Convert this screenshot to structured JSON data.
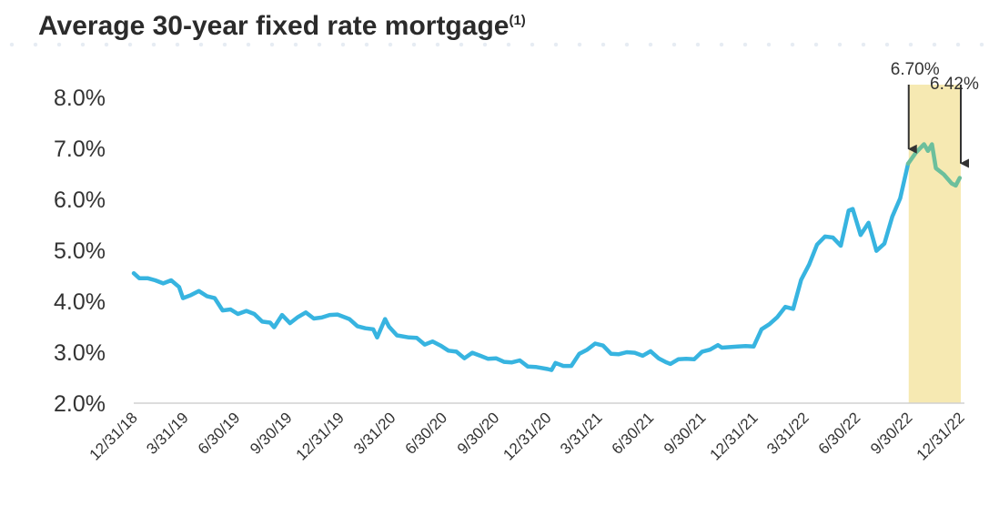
{
  "title": "Average 30-year fixed rate mortgage",
  "title_note": "(1)",
  "colors": {
    "line": "#37b4e0",
    "highlight_line": "#6cbf9c",
    "highlight_band": "#f6e9b2",
    "axis": "#d0d0d0",
    "arrow": "#333333"
  },
  "chart_data": {
    "type": "line",
    "title": "Average 30-year fixed rate mortgage",
    "xlabel": "",
    "ylabel": "",
    "ylim": [
      2.0,
      8.0
    ],
    "yticks": [
      2.0,
      3.0,
      4.0,
      5.0,
      6.0,
      7.0,
      8.0
    ],
    "ytick_labels": [
      "2.0%",
      "3.0%",
      "4.0%",
      "5.0%",
      "6.0%",
      "7.0%",
      "8.0%"
    ],
    "xlim": [
      "2018-12-31",
      "2022-12-31"
    ],
    "xticks": [
      "2018-12-31",
      "2019-03-31",
      "2019-06-30",
      "2019-09-30",
      "2019-12-31",
      "2020-03-31",
      "2020-06-30",
      "2020-09-30",
      "2020-12-31",
      "2021-03-31",
      "2021-06-30",
      "2021-09-30",
      "2021-12-31",
      "2022-03-31",
      "2022-06-30",
      "2022-09-30",
      "2022-12-31"
    ],
    "xtick_labels": [
      "12/31/18",
      "3/31/19",
      "6/30/19",
      "9/30/19",
      "12/31/19",
      "3/31/20",
      "6/30/20",
      "9/30/20",
      "12/31/20",
      "3/31/21",
      "6/30/21",
      "9/30/21",
      "12/31/21",
      "3/31/22",
      "6/30/22",
      "9/30/22",
      "12/31/22"
    ],
    "grid": false,
    "highlight": {
      "from": "2022-09-30",
      "to": "2022-12-31"
    },
    "annotations": [
      {
        "date": "2022-09-30",
        "value": 6.7,
        "label": "6.70%"
      },
      {
        "date": "2022-12-31",
        "value": 6.42,
        "label": "6.42%"
      }
    ],
    "series": [
      {
        "name": "",
        "points": [
          [
            "2018-12-31",
            4.55
          ],
          [
            "2019-01-10",
            4.45
          ],
          [
            "2019-01-25",
            4.45
          ],
          [
            "2019-02-07",
            4.41
          ],
          [
            "2019-02-21",
            4.35
          ],
          [
            "2019-03-07",
            4.41
          ],
          [
            "2019-03-21",
            4.28
          ],
          [
            "2019-03-28",
            4.06
          ],
          [
            "2019-04-11",
            4.12
          ],
          [
            "2019-04-25",
            4.2
          ],
          [
            "2019-05-09",
            4.1
          ],
          [
            "2019-05-23",
            4.06
          ],
          [
            "2019-06-06",
            3.82
          ],
          [
            "2019-06-20",
            3.84
          ],
          [
            "2019-07-03",
            3.75
          ],
          [
            "2019-07-18",
            3.81
          ],
          [
            "2019-08-01",
            3.75
          ],
          [
            "2019-08-15",
            3.6
          ],
          [
            "2019-08-29",
            3.58
          ],
          [
            "2019-09-05",
            3.49
          ],
          [
            "2019-09-19",
            3.73
          ],
          [
            "2019-10-03",
            3.57
          ],
          [
            "2019-10-17",
            3.69
          ],
          [
            "2019-10-31",
            3.78
          ],
          [
            "2019-11-14",
            3.66
          ],
          [
            "2019-11-28",
            3.68
          ],
          [
            "2019-12-12",
            3.73
          ],
          [
            "2019-12-26",
            3.74
          ],
          [
            "2020-01-16",
            3.65
          ],
          [
            "2020-01-30",
            3.51
          ],
          [
            "2020-02-13",
            3.47
          ],
          [
            "2020-02-27",
            3.45
          ],
          [
            "2020-03-05",
            3.29
          ],
          [
            "2020-03-19",
            3.65
          ],
          [
            "2020-03-26",
            3.5
          ],
          [
            "2020-04-09",
            3.33
          ],
          [
            "2020-04-30",
            3.29
          ],
          [
            "2020-05-14",
            3.28
          ],
          [
            "2020-05-28",
            3.15
          ],
          [
            "2020-06-11",
            3.21
          ],
          [
            "2020-06-25",
            3.13
          ],
          [
            "2020-07-09",
            3.03
          ],
          [
            "2020-07-23",
            3.01
          ],
          [
            "2020-08-06",
            2.88
          ],
          [
            "2020-08-20",
            2.99
          ],
          [
            "2020-09-03",
            2.93
          ],
          [
            "2020-09-17",
            2.87
          ],
          [
            "2020-10-01",
            2.88
          ],
          [
            "2020-10-15",
            2.81
          ],
          [
            "2020-10-29",
            2.8
          ],
          [
            "2020-11-12",
            2.84
          ],
          [
            "2020-11-26",
            2.72
          ],
          [
            "2020-12-10",
            2.71
          ],
          [
            "2020-12-31",
            2.67
          ],
          [
            "2021-01-07",
            2.65
          ],
          [
            "2021-01-14",
            2.79
          ],
          [
            "2021-01-28",
            2.73
          ],
          [
            "2021-02-11",
            2.73
          ],
          [
            "2021-02-25",
            2.97
          ],
          [
            "2021-03-11",
            3.05
          ],
          [
            "2021-03-25",
            3.17
          ],
          [
            "2021-04-08",
            3.13
          ],
          [
            "2021-04-22",
            2.97
          ],
          [
            "2021-05-06",
            2.96
          ],
          [
            "2021-05-20",
            3.0
          ],
          [
            "2021-06-03",
            2.99
          ],
          [
            "2021-06-17",
            2.93
          ],
          [
            "2021-07-01",
            3.02
          ],
          [
            "2021-07-15",
            2.88
          ],
          [
            "2021-07-29",
            2.8
          ],
          [
            "2021-08-05",
            2.77
          ],
          [
            "2021-08-19",
            2.86
          ],
          [
            "2021-09-02",
            2.87
          ],
          [
            "2021-09-16",
            2.86
          ],
          [
            "2021-09-30",
            3.01
          ],
          [
            "2021-10-14",
            3.05
          ],
          [
            "2021-10-28",
            3.14
          ],
          [
            "2021-11-04",
            3.09
          ],
          [
            "2021-11-18",
            3.1
          ],
          [
            "2021-12-02",
            3.11
          ],
          [
            "2021-12-16",
            3.12
          ],
          [
            "2021-12-30",
            3.11
          ],
          [
            "2022-01-13",
            3.45
          ],
          [
            "2022-01-27",
            3.55
          ],
          [
            "2022-02-10",
            3.69
          ],
          [
            "2022-02-24",
            3.89
          ],
          [
            "2022-03-10",
            3.85
          ],
          [
            "2022-03-24",
            4.42
          ],
          [
            "2022-04-07",
            4.72
          ],
          [
            "2022-04-21",
            5.11
          ],
          [
            "2022-05-05",
            5.27
          ],
          [
            "2022-05-19",
            5.25
          ],
          [
            "2022-06-02",
            5.09
          ],
          [
            "2022-06-16",
            5.78
          ],
          [
            "2022-06-23",
            5.81
          ],
          [
            "2022-07-07",
            5.3
          ],
          [
            "2022-07-21",
            5.54
          ],
          [
            "2022-08-04",
            4.99
          ],
          [
            "2022-08-18",
            5.13
          ],
          [
            "2022-09-01",
            5.66
          ],
          [
            "2022-09-15",
            6.02
          ],
          [
            "2022-09-29",
            6.7
          ],
          [
            "2022-10-13",
            6.92
          ],
          [
            "2022-10-27",
            7.08
          ],
          [
            "2022-11-03",
            6.95
          ],
          [
            "2022-11-10",
            7.08
          ],
          [
            "2022-11-17",
            6.61
          ],
          [
            "2022-12-01",
            6.49
          ],
          [
            "2022-12-15",
            6.31
          ],
          [
            "2022-12-22",
            6.27
          ],
          [
            "2022-12-29",
            6.42
          ]
        ]
      }
    ]
  }
}
